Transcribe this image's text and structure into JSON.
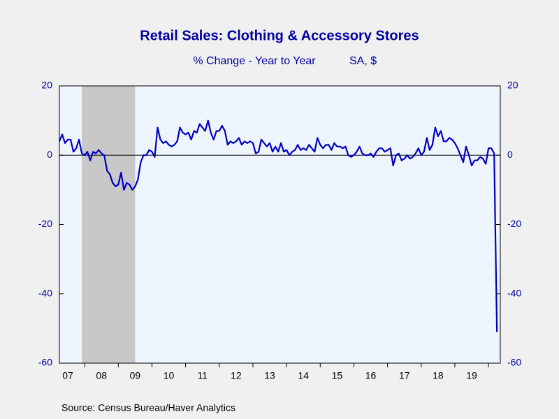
{
  "chart_data": {
    "type": "line",
    "title": "Retail Sales: Clothing & Accessory Stores",
    "subtitle": "% Change - Year to Year",
    "units_note": "SA, $",
    "source": "Source:  Census Bureau/Haver Analytics",
    "x": [
      2007.25,
      2007.333,
      2007.417,
      2007.5,
      2007.583,
      2007.667,
      2007.75,
      2007.833,
      2007.917,
      2008,
      2008.083,
      2008.167,
      2008.25,
      2008.333,
      2008.417,
      2008.5,
      2008.583,
      2008.667,
      2008.75,
      2008.833,
      2008.917,
      2009,
      2009.083,
      2009.167,
      2009.25,
      2009.333,
      2009.417,
      2009.5,
      2009.583,
      2009.667,
      2009.75,
      2009.833,
      2009.917,
      2010,
      2010.083,
      2010.167,
      2010.25,
      2010.333,
      2010.417,
      2010.5,
      2010.583,
      2010.667,
      2010.75,
      2010.833,
      2010.917,
      2011,
      2011.083,
      2011.167,
      2011.25,
      2011.333,
      2011.417,
      2011.5,
      2011.583,
      2011.667,
      2011.75,
      2011.833,
      2011.917,
      2012,
      2012.083,
      2012.167,
      2012.25,
      2012.333,
      2012.417,
      2012.5,
      2012.583,
      2012.667,
      2012.75,
      2012.833,
      2012.917,
      2013,
      2013.083,
      2013.167,
      2013.25,
      2013.333,
      2013.417,
      2013.5,
      2013.583,
      2013.667,
      2013.75,
      2013.833,
      2013.917,
      2014,
      2014.083,
      2014.167,
      2014.25,
      2014.333,
      2014.417,
      2014.5,
      2014.583,
      2014.667,
      2014.75,
      2014.833,
      2014.917,
      2015,
      2015.083,
      2015.167,
      2015.25,
      2015.333,
      2015.417,
      2015.5,
      2015.583,
      2015.667,
      2015.75,
      2015.833,
      2015.917,
      2016,
      2016.083,
      2016.167,
      2016.25,
      2016.333,
      2016.417,
      2016.5,
      2016.583,
      2016.667,
      2016.75,
      2016.833,
      2016.917,
      2017,
      2017.083,
      2017.167,
      2017.25,
      2017.333,
      2017.417,
      2017.5,
      2017.583,
      2017.667,
      2017.75,
      2017.833,
      2017.917,
      2018,
      2018.083,
      2018.167,
      2018.25,
      2018.333,
      2018.417,
      2018.5,
      2018.583,
      2018.667,
      2018.75,
      2018.833,
      2018.917,
      2019,
      2019.083,
      2019.167,
      2019.25,
      2019.333,
      2019.417,
      2019.5,
      2019.583,
      2019.667,
      2019.75,
      2019.833,
      2019.917,
      2020,
      2020.083,
      2020.167,
      2020.25
    ],
    "series": [
      {
        "color": "#0000c0",
        "values": [
          4,
          6,
          3.5,
          4.5,
          4.5,
          1,
          2,
          4.5,
          0.5,
          0,
          1,
          -1.5,
          1,
          0.5,
          1.5,
          0.5,
          0,
          -4.5,
          -5.5,
          -8,
          -9,
          -8.5,
          -5,
          -10,
          -8,
          -8.5,
          -10,
          -9,
          -7,
          -2,
          0,
          0,
          1.5,
          1,
          -0.5,
          8,
          4.5,
          3.5,
          4,
          3,
          2.5,
          3,
          4,
          8,
          6.5,
          6,
          6.5,
          4.5,
          7,
          6.5,
          9,
          8,
          7,
          10,
          6.5,
          4.5,
          7,
          7,
          8.5,
          7,
          3,
          4,
          3.5,
          4,
          5,
          3,
          4,
          3.5,
          4,
          3.5,
          0.5,
          1,
          4.5,
          3.5,
          2.5,
          3.5,
          1,
          2.5,
          1,
          3.5,
          1,
          1.5,
          0,
          1,
          1.5,
          3,
          1.5,
          2,
          1.5,
          3,
          2,
          1,
          5,
          3,
          2,
          3,
          3,
          1.5,
          3.5,
          2.5,
          2.5,
          2,
          2.5,
          0,
          -0.5,
          0,
          1,
          2.5,
          0.5,
          0,
          0,
          0.5,
          -0.5,
          1,
          2,
          2,
          1,
          1.5,
          2,
          -3,
          0,
          0.5,
          -1.5,
          -1,
          0,
          -1,
          -0.5,
          0.5,
          2,
          0,
          1,
          5,
          1.5,
          3,
          8,
          5.5,
          7,
          4,
          4,
          5,
          4.5,
          3.5,
          2,
          0,
          -2,
          2.5,
          0,
          -3,
          -1.5,
          -1.5,
          -0.5,
          -1,
          -2.5,
          2,
          2,
          0.5,
          -51
        ]
      }
    ],
    "recession": [
      2007.917,
      2009.5
    ],
    "xlim": [
      2007.25,
      2020.35
    ],
    "xticks": [
      {
        "value": 2007.5,
        "label": "07"
      },
      {
        "value": 2008.5,
        "label": "08"
      },
      {
        "value": 2009.5,
        "label": "09"
      },
      {
        "value": 2010.5,
        "label": "10"
      },
      {
        "value": 2011.5,
        "label": "11"
      },
      {
        "value": 2012.5,
        "label": "12"
      },
      {
        "value": 2013.5,
        "label": "13"
      },
      {
        "value": 2014.5,
        "label": "14"
      },
      {
        "value": 2015.5,
        "label": "15"
      },
      {
        "value": 2016.5,
        "label": "16"
      },
      {
        "value": 2017.5,
        "label": "17"
      },
      {
        "value": 2018.5,
        "label": "18"
      },
      {
        "value": 2019.5,
        "label": "19"
      }
    ],
    "ylim": [
      -60,
      20
    ],
    "yticks": [
      -60,
      -40,
      -20,
      0,
      20
    ],
    "y2lim": [
      -60,
      20
    ],
    "y2ticks": [
      -60,
      -40,
      -20,
      0,
      20
    ]
  }
}
